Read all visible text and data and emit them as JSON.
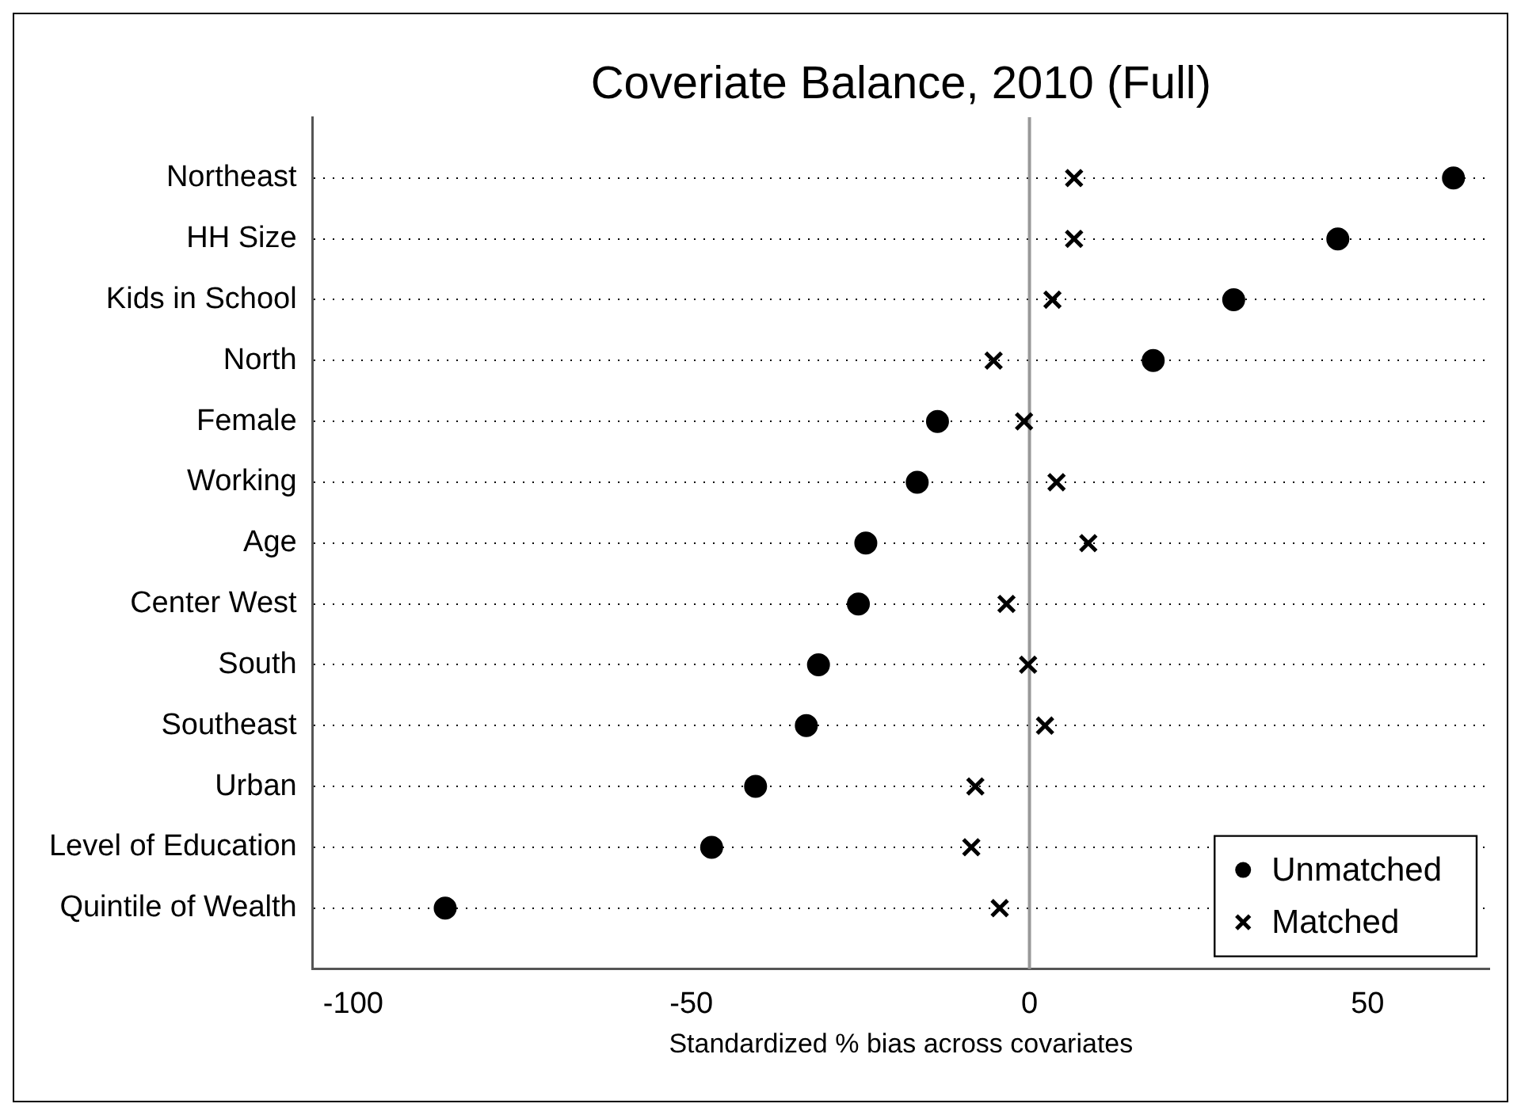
{
  "chart_data": {
    "type": "scatter",
    "orientation": "horizontal",
    "title": "Coveriate Balance, 2010 (Full)",
    "xlabel": "Standardized % bias across covariates",
    "categories": [
      "Northeast",
      "HH Size",
      "Kids in School",
      "North",
      "Female",
      "Working",
      "Age",
      "Center West",
      "South",
      "Southeast",
      "Urban",
      "Level of Education",
      "Quintile of Wealth"
    ],
    "series": [
      {
        "name": "Unmatched",
        "color": "#000000",
        "marker": "circle",
        "values": [
          62.7,
          45.6,
          30.2,
          18.3,
          -13.6,
          -16.6,
          -24.2,
          -25.3,
          -31.2,
          -33,
          -40.5,
          -47,
          -86.4
        ]
      },
      {
        "name": "Matched",
        "color": "#000000",
        "marker": "cross",
        "values": [
          6.6,
          6.6,
          3.4,
          -5.3,
          -0.8,
          4,
          8.7,
          -3.4,
          -0.2,
          2.3,
          -8,
          -8.6,
          -4.4
        ]
      }
    ],
    "xlim": [
      -106,
      68
    ],
    "xticks": [
      -100,
      -50,
      0,
      50
    ],
    "ref_lines": [
      {
        "axis": "x",
        "value": 0,
        "color": "#999999"
      }
    ],
    "grid": "y",
    "legend": "bottom right"
  }
}
